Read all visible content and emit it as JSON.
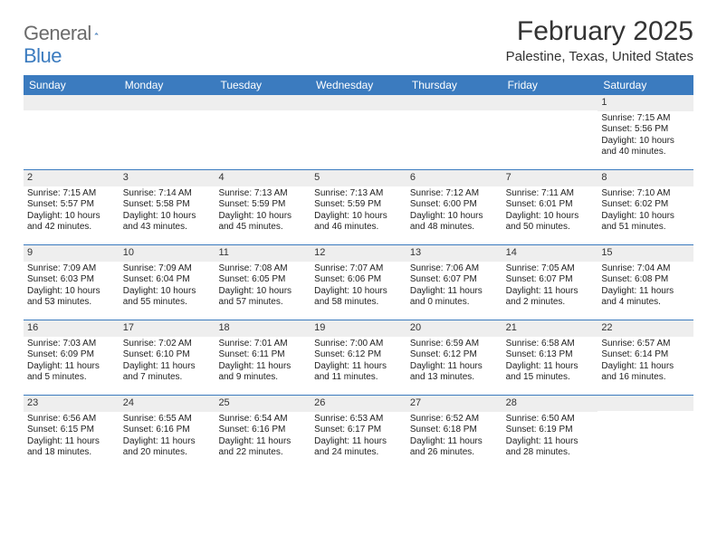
{
  "brand": {
    "word1": "General",
    "word2": "Blue"
  },
  "title": "February 2025",
  "location": "Palestine, Texas, United States",
  "colors": {
    "header_bg": "#3b7bbf",
    "header_text": "#ffffff",
    "daynum_bg": "#eeeeee",
    "body_text": "#222222",
    "rule": "#3b7bbf",
    "logo_gray": "#6b6b6b",
    "logo_blue": "#3b7bbf"
  },
  "day_names": [
    "Sunday",
    "Monday",
    "Tuesday",
    "Wednesday",
    "Thursday",
    "Friday",
    "Saturday"
  ],
  "weeks": [
    [
      {
        "n": "",
        "sr": "",
        "ss": "",
        "dl": ""
      },
      {
        "n": "",
        "sr": "",
        "ss": "",
        "dl": ""
      },
      {
        "n": "",
        "sr": "",
        "ss": "",
        "dl": ""
      },
      {
        "n": "",
        "sr": "",
        "ss": "",
        "dl": ""
      },
      {
        "n": "",
        "sr": "",
        "ss": "",
        "dl": ""
      },
      {
        "n": "",
        "sr": "",
        "ss": "",
        "dl": ""
      },
      {
        "n": "1",
        "sr": "Sunrise: 7:15 AM",
        "ss": "Sunset: 5:56 PM",
        "dl": "Daylight: 10 hours and 40 minutes."
      }
    ],
    [
      {
        "n": "2",
        "sr": "Sunrise: 7:15 AM",
        "ss": "Sunset: 5:57 PM",
        "dl": "Daylight: 10 hours and 42 minutes."
      },
      {
        "n": "3",
        "sr": "Sunrise: 7:14 AM",
        "ss": "Sunset: 5:58 PM",
        "dl": "Daylight: 10 hours and 43 minutes."
      },
      {
        "n": "4",
        "sr": "Sunrise: 7:13 AM",
        "ss": "Sunset: 5:59 PM",
        "dl": "Daylight: 10 hours and 45 minutes."
      },
      {
        "n": "5",
        "sr": "Sunrise: 7:13 AM",
        "ss": "Sunset: 5:59 PM",
        "dl": "Daylight: 10 hours and 46 minutes."
      },
      {
        "n": "6",
        "sr": "Sunrise: 7:12 AM",
        "ss": "Sunset: 6:00 PM",
        "dl": "Daylight: 10 hours and 48 minutes."
      },
      {
        "n": "7",
        "sr": "Sunrise: 7:11 AM",
        "ss": "Sunset: 6:01 PM",
        "dl": "Daylight: 10 hours and 50 minutes."
      },
      {
        "n": "8",
        "sr": "Sunrise: 7:10 AM",
        "ss": "Sunset: 6:02 PM",
        "dl": "Daylight: 10 hours and 51 minutes."
      }
    ],
    [
      {
        "n": "9",
        "sr": "Sunrise: 7:09 AM",
        "ss": "Sunset: 6:03 PM",
        "dl": "Daylight: 10 hours and 53 minutes."
      },
      {
        "n": "10",
        "sr": "Sunrise: 7:09 AM",
        "ss": "Sunset: 6:04 PM",
        "dl": "Daylight: 10 hours and 55 minutes."
      },
      {
        "n": "11",
        "sr": "Sunrise: 7:08 AM",
        "ss": "Sunset: 6:05 PM",
        "dl": "Daylight: 10 hours and 57 minutes."
      },
      {
        "n": "12",
        "sr": "Sunrise: 7:07 AM",
        "ss": "Sunset: 6:06 PM",
        "dl": "Daylight: 10 hours and 58 minutes."
      },
      {
        "n": "13",
        "sr": "Sunrise: 7:06 AM",
        "ss": "Sunset: 6:07 PM",
        "dl": "Daylight: 11 hours and 0 minutes."
      },
      {
        "n": "14",
        "sr": "Sunrise: 7:05 AM",
        "ss": "Sunset: 6:07 PM",
        "dl": "Daylight: 11 hours and 2 minutes."
      },
      {
        "n": "15",
        "sr": "Sunrise: 7:04 AM",
        "ss": "Sunset: 6:08 PM",
        "dl": "Daylight: 11 hours and 4 minutes."
      }
    ],
    [
      {
        "n": "16",
        "sr": "Sunrise: 7:03 AM",
        "ss": "Sunset: 6:09 PM",
        "dl": "Daylight: 11 hours and 5 minutes."
      },
      {
        "n": "17",
        "sr": "Sunrise: 7:02 AM",
        "ss": "Sunset: 6:10 PM",
        "dl": "Daylight: 11 hours and 7 minutes."
      },
      {
        "n": "18",
        "sr": "Sunrise: 7:01 AM",
        "ss": "Sunset: 6:11 PM",
        "dl": "Daylight: 11 hours and 9 minutes."
      },
      {
        "n": "19",
        "sr": "Sunrise: 7:00 AM",
        "ss": "Sunset: 6:12 PM",
        "dl": "Daylight: 11 hours and 11 minutes."
      },
      {
        "n": "20",
        "sr": "Sunrise: 6:59 AM",
        "ss": "Sunset: 6:12 PM",
        "dl": "Daylight: 11 hours and 13 minutes."
      },
      {
        "n": "21",
        "sr": "Sunrise: 6:58 AM",
        "ss": "Sunset: 6:13 PM",
        "dl": "Daylight: 11 hours and 15 minutes."
      },
      {
        "n": "22",
        "sr": "Sunrise: 6:57 AM",
        "ss": "Sunset: 6:14 PM",
        "dl": "Daylight: 11 hours and 16 minutes."
      }
    ],
    [
      {
        "n": "23",
        "sr": "Sunrise: 6:56 AM",
        "ss": "Sunset: 6:15 PM",
        "dl": "Daylight: 11 hours and 18 minutes."
      },
      {
        "n": "24",
        "sr": "Sunrise: 6:55 AM",
        "ss": "Sunset: 6:16 PM",
        "dl": "Daylight: 11 hours and 20 minutes."
      },
      {
        "n": "25",
        "sr": "Sunrise: 6:54 AM",
        "ss": "Sunset: 6:16 PM",
        "dl": "Daylight: 11 hours and 22 minutes."
      },
      {
        "n": "26",
        "sr": "Sunrise: 6:53 AM",
        "ss": "Sunset: 6:17 PM",
        "dl": "Daylight: 11 hours and 24 minutes."
      },
      {
        "n": "27",
        "sr": "Sunrise: 6:52 AM",
        "ss": "Sunset: 6:18 PM",
        "dl": "Daylight: 11 hours and 26 minutes."
      },
      {
        "n": "28",
        "sr": "Sunrise: 6:50 AM",
        "ss": "Sunset: 6:19 PM",
        "dl": "Daylight: 11 hours and 28 minutes."
      },
      {
        "n": "",
        "sr": "",
        "ss": "",
        "dl": ""
      }
    ]
  ]
}
